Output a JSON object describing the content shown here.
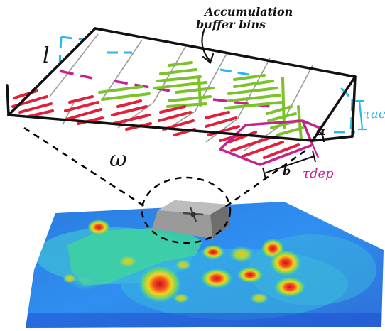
{
  "labels": {
    "accumulation_line1": "Accumulation",
    "accumulation_line2": "buffer bins",
    "length": "l",
    "width": "ω",
    "alpha": "α",
    "bin_width": "b",
    "tau_acc": "τacc",
    "tau_dep": "τdep"
  },
  "colors": {
    "outline": "#111111",
    "cyan": "#2fb6e8",
    "green": "#7cc22b",
    "red": "#e2203a",
    "magenta": "#c4238f",
    "deep_blue": "#1f4fd1",
    "grey_robot": "#8a8a8a"
  },
  "icons": {
    "robot": "robot-rover-icon"
  }
}
